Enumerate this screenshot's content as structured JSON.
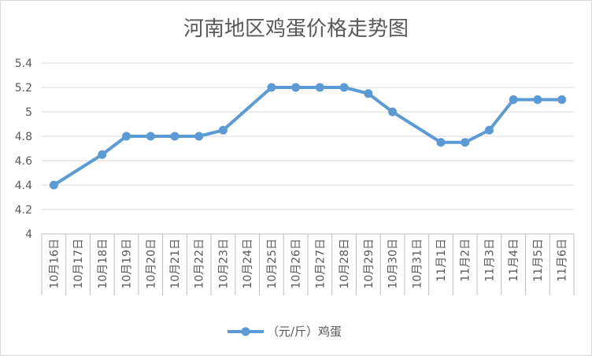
{
  "chart_data": {
    "type": "line",
    "title": "河南地区鸡蛋价格走势图",
    "xlabel": "",
    "ylabel": "",
    "categories": [
      "10月16日",
      "10月17日",
      "10月18日",
      "10月19日",
      "10月20日",
      "10月21日",
      "10月22日",
      "10月23日",
      "10月24日",
      "10月25日",
      "10月26日",
      "10月27日",
      "10月28日",
      "10月29日",
      "10月30日",
      "10月31日",
      "11月1日",
      "11月2日",
      "11月3日",
      "11月4日",
      "11月5日",
      "11月6日"
    ],
    "ylim": [
      4,
      5.4
    ],
    "yticks": [
      "4",
      "4.2",
      "4.4",
      "4.6",
      "4.8",
      "5",
      "5.2",
      "5.4"
    ],
    "grid": true,
    "legend_position": "bottom",
    "series": [
      {
        "name": "（元/斤）鸡蛋",
        "color": "#5b9bd5",
        "values": [
          4.4,
          null,
          4.65,
          4.8,
          4.8,
          4.8,
          4.8,
          4.85,
          null,
          5.2,
          5.2,
          5.2,
          5.2,
          5.15,
          5.0,
          null,
          4.75,
          4.75,
          4.85,
          5.1,
          5.1,
          5.1
        ]
      }
    ]
  }
}
